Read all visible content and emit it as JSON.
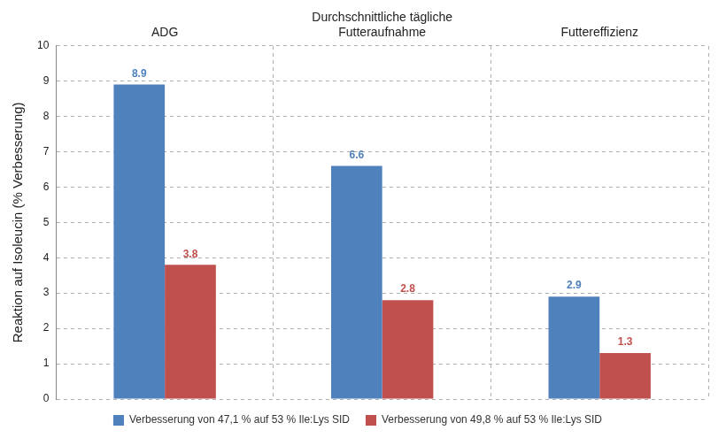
{
  "chart_data": {
    "type": "bar",
    "y_label": "Reaktion auf Isoleucin (% Verbesserung)",
    "categories": [
      "ADG",
      "Durchschnittliche tägliche Futteraufnahme",
      "Futtereffizienz"
    ],
    "series": [
      {
        "name": "Verbesserung von 47,1 % auf 53 % Ile:Lys SID",
        "color": "#4f81bd",
        "values": [
          8.9,
          6.6,
          2.9
        ]
      },
      {
        "name": "Verbesserung von 49,8 % auf 53 % Ile:Lys SID",
        "color": "#c0504d",
        "values": [
          3.8,
          2.8,
          1.3
        ]
      }
    ],
    "ylim": [
      0,
      10
    ],
    "yticks": [
      0,
      1,
      2,
      3,
      4,
      5,
      6,
      7,
      8,
      9,
      10
    ],
    "grid": true,
    "legend": "bottom",
    "data_labels": true
  }
}
